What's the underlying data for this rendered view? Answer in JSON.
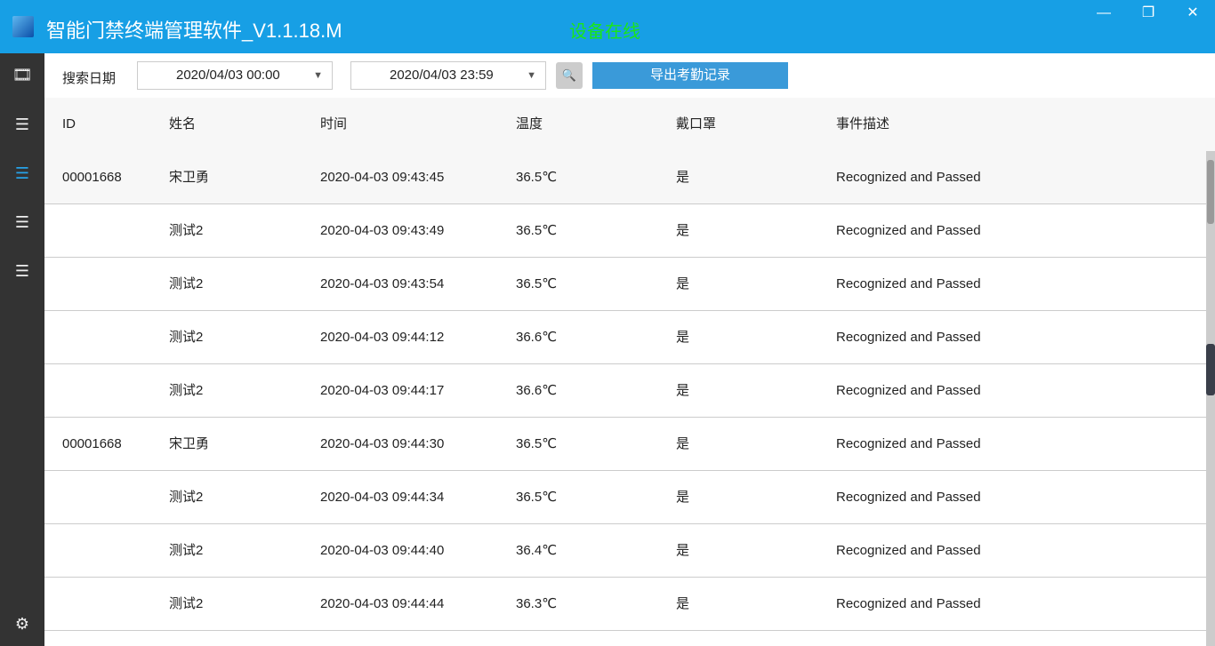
{
  "window": {
    "title": "智能门禁终端管理软件_V1.1.18.M",
    "status": "设备在线",
    "status_color": "#19e619",
    "minimize": "—",
    "restore": "❐",
    "close": "✕"
  },
  "sidebar": {
    "items": [
      {
        "icon": "video-icon"
      },
      {
        "icon": "list-icon"
      },
      {
        "icon": "list-icon",
        "active": true
      },
      {
        "icon": "list-icon"
      },
      {
        "icon": "list-icon"
      }
    ],
    "settings_icon": "gear-icon"
  },
  "toolbar": {
    "search_label": "搜索日期",
    "start": "2020/04/03 00:00",
    "end": "2020/04/03 23:59",
    "search_icon": "search-icon",
    "export_label": "导出考勤记录"
  },
  "table": {
    "headers": [
      "ID",
      "姓名",
      "时间",
      "温度",
      "戴口罩",
      "事件描述"
    ],
    "rows": [
      [
        "00001668",
        "宋卫勇",
        "2020-04-03 09:43:45",
        "36.5℃",
        "是",
        "Recognized and Passed"
      ],
      [
        "",
        "测试2",
        "2020-04-03 09:43:49",
        "36.5℃",
        "是",
        "Recognized and Passed"
      ],
      [
        "",
        "测试2",
        "2020-04-03 09:43:54",
        "36.5℃",
        "是",
        "Recognized and Passed"
      ],
      [
        "",
        "测试2",
        "2020-04-03 09:44:12",
        "36.6℃",
        "是",
        "Recognized and Passed"
      ],
      [
        "",
        "测试2",
        "2020-04-03 09:44:17",
        "36.6℃",
        "是",
        "Recognized and Passed"
      ],
      [
        "00001668",
        "宋卫勇",
        "2020-04-03 09:44:30",
        "36.5℃",
        "是",
        "Recognized and Passed"
      ],
      [
        "",
        "测试2",
        "2020-04-03 09:44:34",
        "36.5℃",
        "是",
        "Recognized and Passed"
      ],
      [
        "",
        "测试2",
        "2020-04-03 09:44:40",
        "36.4℃",
        "是",
        "Recognized and Passed"
      ],
      [
        "",
        "测试2",
        "2020-04-03 09:44:44",
        "36.3℃",
        "是",
        "Recognized and Passed"
      ]
    ]
  }
}
